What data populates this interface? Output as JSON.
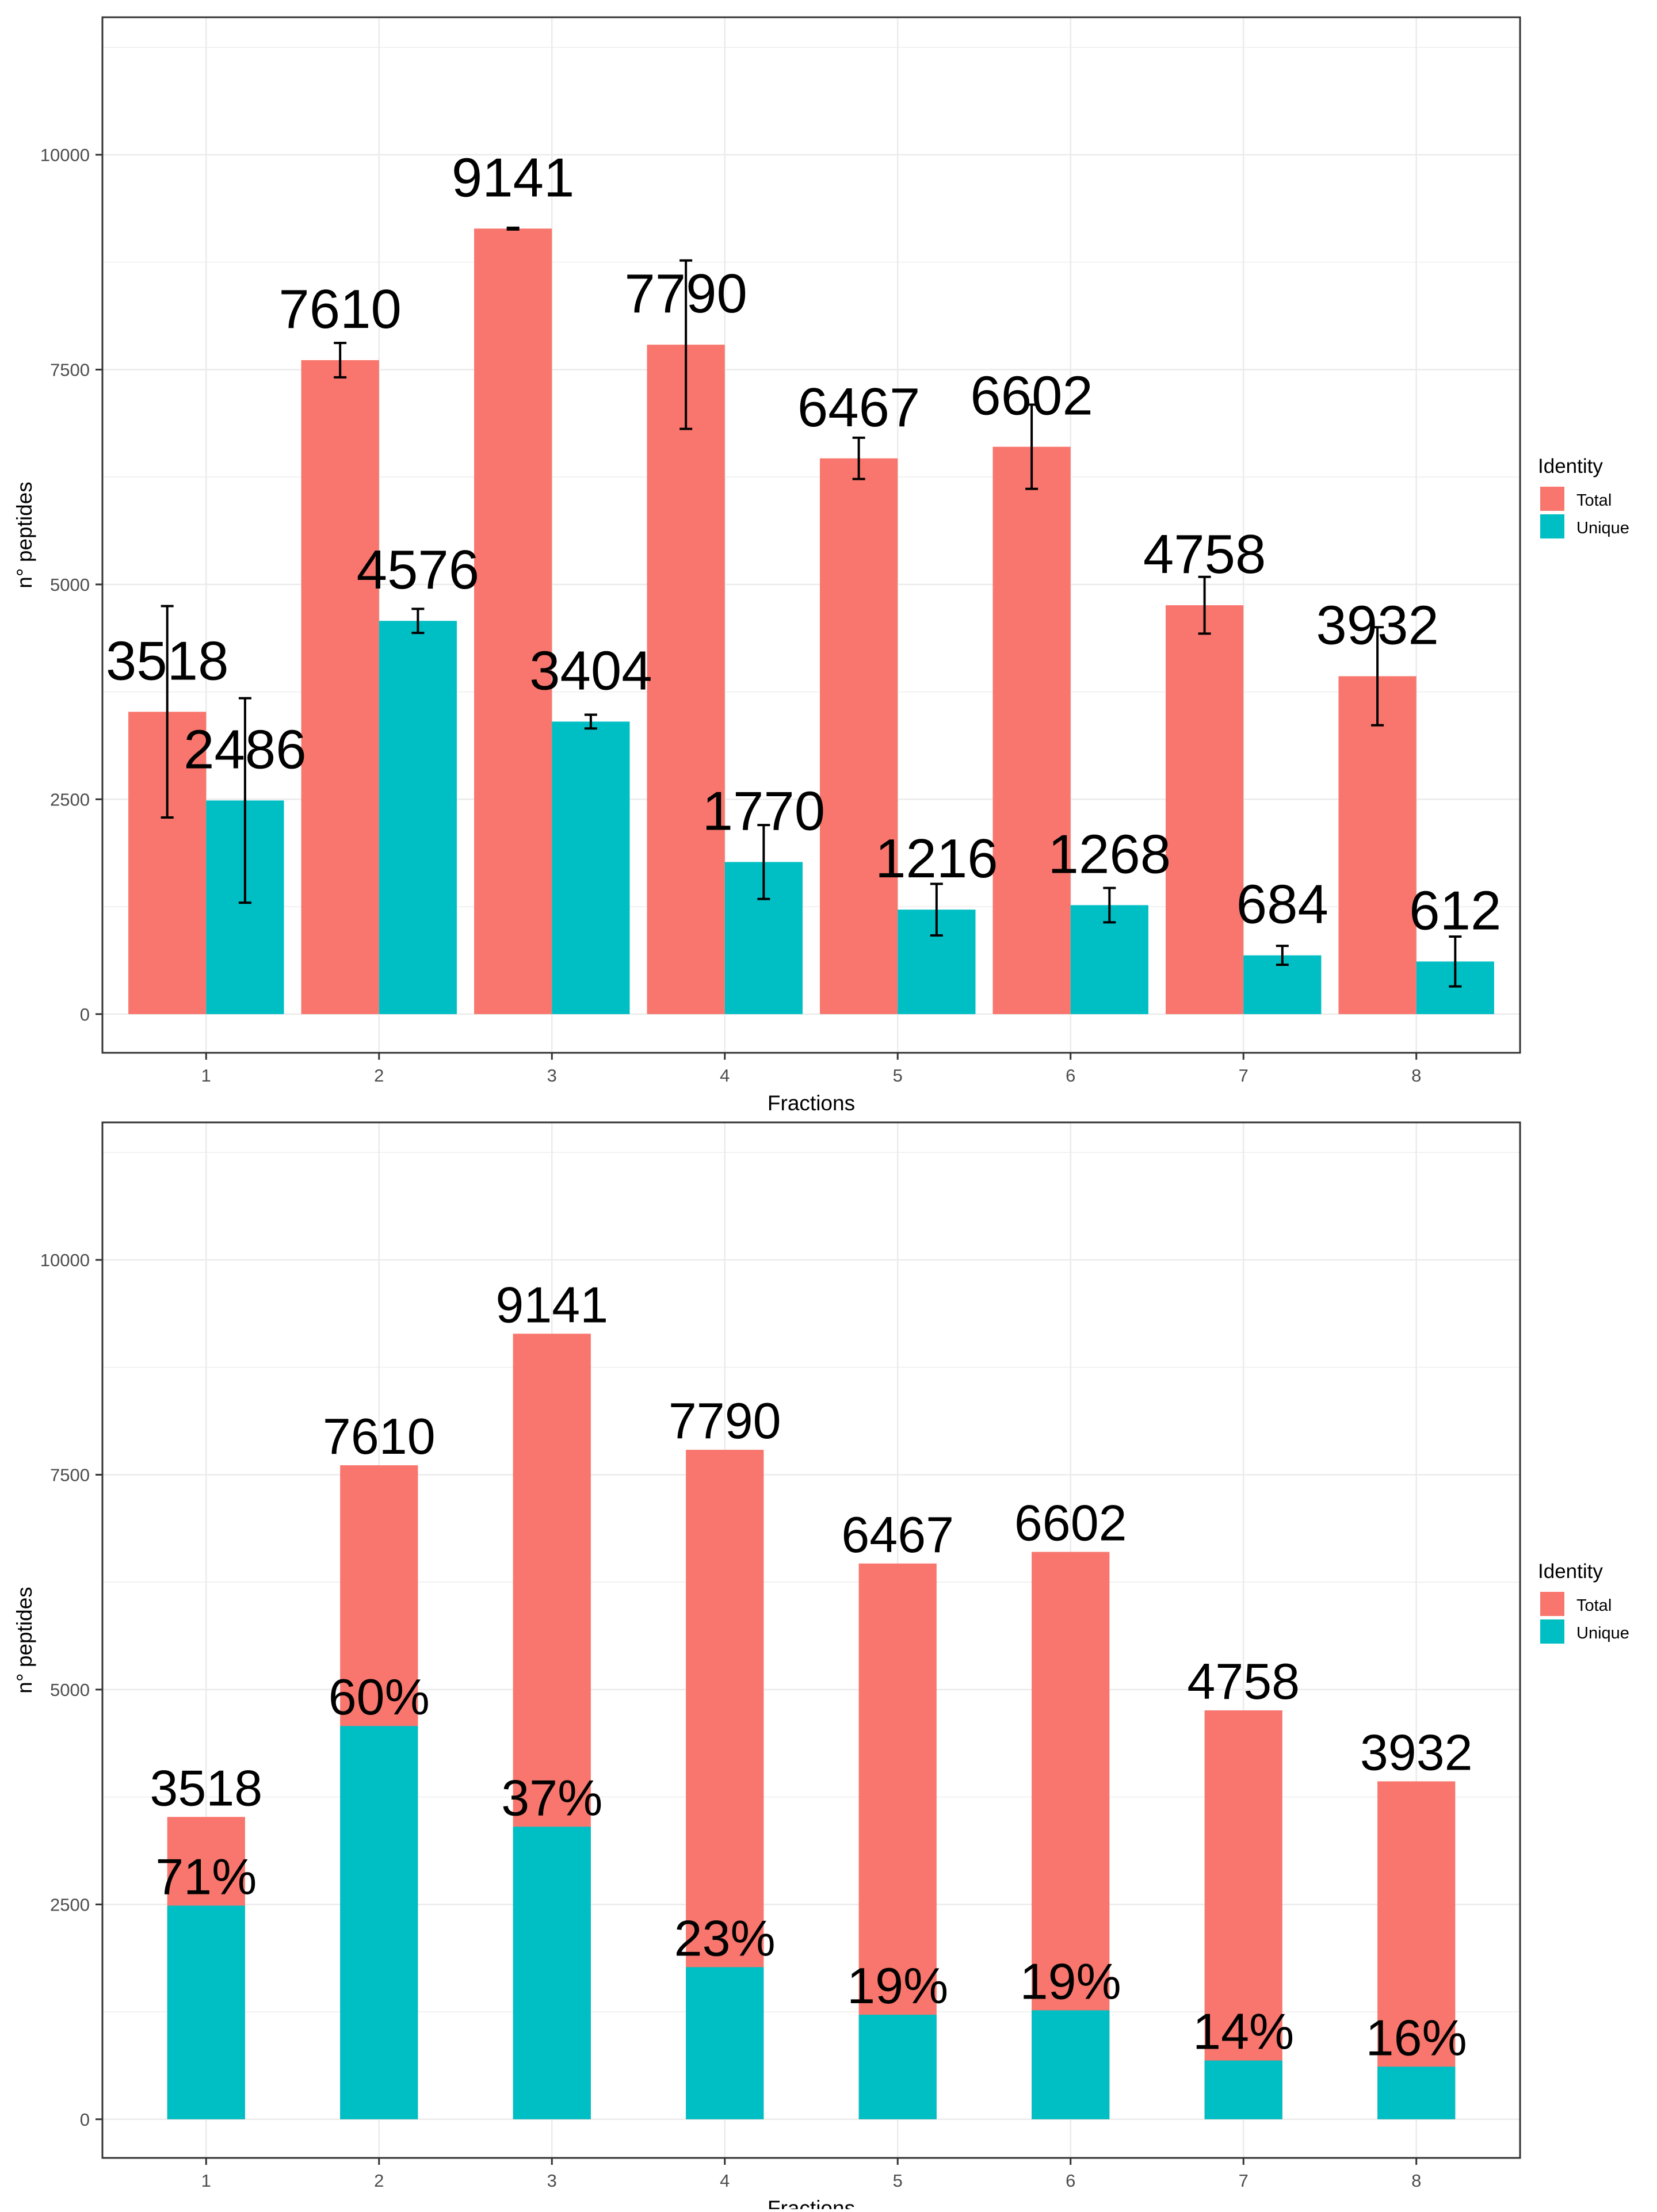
{
  "colors": {
    "total": "#F8766D",
    "unique": "#00BFC4",
    "grid": "#EBEBEB",
    "border": "#333333"
  },
  "chart_data": [
    {
      "type": "bar",
      "mode": "dodge",
      "categories": [
        "1",
        "2",
        "3",
        "4",
        "5",
        "6",
        "7",
        "8"
      ],
      "series": [
        {
          "name": "Total",
          "values": [
            3518,
            7610,
            9141,
            7790,
            6467,
            6602,
            4758,
            3932
          ],
          "error": [
            1230,
            200,
            10,
            980,
            240,
            490,
            330,
            570
          ]
        },
        {
          "name": "Unique",
          "values": [
            2486,
            4576,
            3404,
            1770,
            1216,
            1268,
            684,
            612
          ],
          "error": [
            1190,
            140,
            80,
            430,
            300,
            200,
            110,
            290
          ]
        }
      ],
      "labels_total": [
        "3518",
        "7610",
        "9141",
        "7790",
        "6467",
        "6602",
        "4758",
        "3932"
      ],
      "labels_unique": [
        "2486",
        "4576",
        "3404",
        "1770",
        "1216",
        "1268",
        "684",
        "612"
      ],
      "xlabel": "Fractions",
      "ylabel": "n° peptides",
      "ylim": [
        -450,
        11600
      ],
      "yticks": [
        0,
        2500,
        5000,
        7500,
        10000
      ],
      "grid": true,
      "legend_title": "Identity",
      "legend_position": "right"
    },
    {
      "type": "bar",
      "mode": "overlay",
      "categories": [
        "1",
        "2",
        "3",
        "4",
        "5",
        "6",
        "7",
        "8"
      ],
      "series": [
        {
          "name": "Total",
          "values": [
            3518,
            7610,
            9141,
            7790,
            6467,
            6602,
            4758,
            3932
          ]
        },
        {
          "name": "Unique",
          "values": [
            2486,
            4576,
            3404,
            1770,
            1216,
            1268,
            684,
            612
          ]
        }
      ],
      "labels_total": [
        "3518",
        "7610",
        "9141",
        "7790",
        "6467",
        "6602",
        "4758",
        "3932"
      ],
      "labels_pct": [
        "71%",
        "60%",
        "37%",
        "23%",
        "19%",
        "19%",
        "14%",
        "16%"
      ],
      "xlabel": "Fractions",
      "ylabel": "n° peptides",
      "ylim": [
        -450,
        11600
      ],
      "yticks": [
        0,
        2500,
        5000,
        7500,
        10000
      ],
      "grid": true,
      "legend_title": "Identity",
      "legend_position": "right"
    }
  ]
}
